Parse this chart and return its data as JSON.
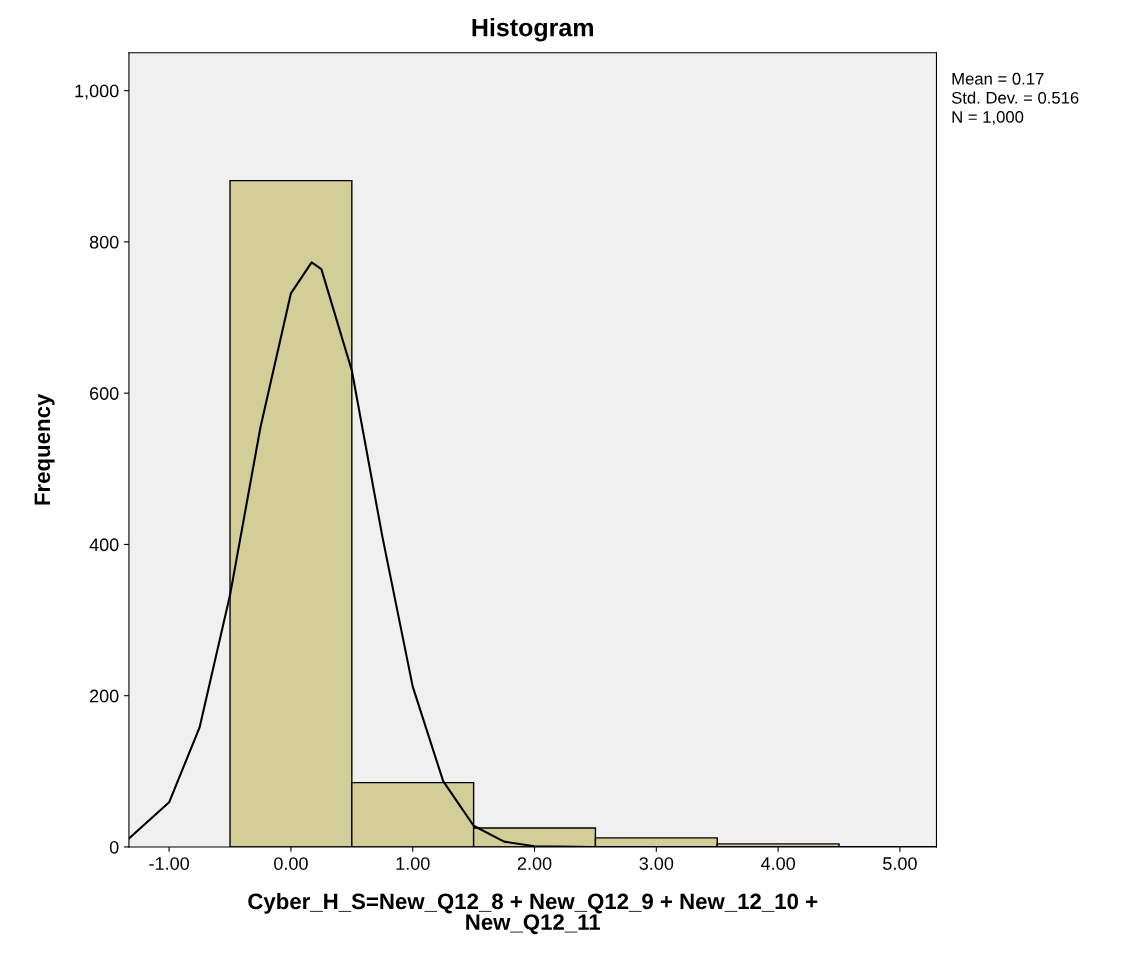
{
  "chart_data": {
    "type": "histogram",
    "title": "Histogram",
    "xlabel": "Cyber_H_S=New_Q12_8 + New_Q12_9 + New_12_10 +\nNew_Q12_11",
    "ylabel": "Frequency",
    "bins": [
      -0.5,
      0.5,
      1.5,
      2.5,
      3.5,
      4.5
    ],
    "values": [
      881,
      85,
      25,
      12,
      4
    ],
    "color": "#d3ce97",
    "series": [
      {
        "type": "line",
        "color": "#000000",
        "x": [
          -1.33,
          -1.0,
          -0.75,
          -0.5,
          -0.25,
          0,
          0.17,
          0.25,
          0.5,
          0.75,
          1.0,
          1.25,
          1.5,
          1.75,
          2.0,
          2.5,
          3.0,
          5.3
        ],
        "values": [
          11,
          59,
          158,
          333,
          555,
          732,
          773,
          764,
          630,
          411,
          212,
          87,
          28,
          7,
          1,
          0,
          0,
          0
        ]
      }
    ],
    "xlim": [
      -1.33,
      5.3
    ],
    "ylim": [
      0,
      1050
    ],
    "xticks": [
      {
        "value": -1,
        "label": "-1.00"
      },
      {
        "value": 0,
        "label": "0.00"
      },
      {
        "value": 1,
        "label": "1.00"
      },
      {
        "value": 2,
        "label": "2.00"
      },
      {
        "value": 3,
        "label": "3.00"
      },
      {
        "value": 4,
        "label": "4.00"
      },
      {
        "value": 5,
        "label": "5.00"
      }
    ],
    "yticks": [
      0,
      200,
      400,
      600,
      800,
      {
        "value": 1000,
        "label": "1,000"
      }
    ],
    "annotations": [
      "Mean = 0.17",
      "Std. Dev. = 0.516",
      "N = 1,000"
    ],
    "grid": false,
    "legend": false
  }
}
